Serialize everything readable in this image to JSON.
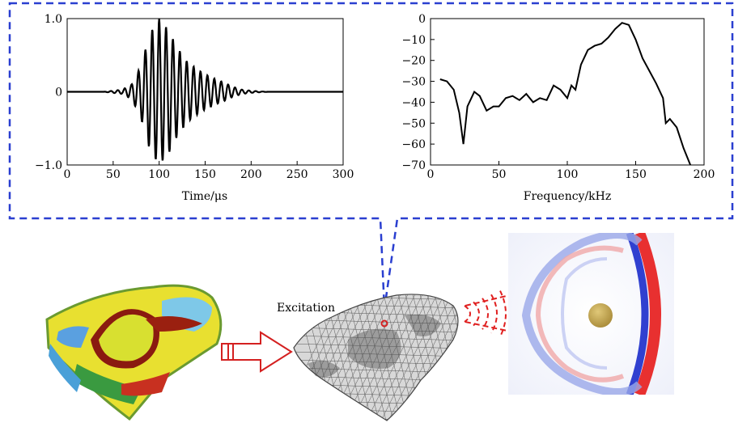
{
  "chart_data": [
    {
      "type": "line",
      "title": "",
      "xlabel": "Time/μs",
      "ylabel": "",
      "xlim": [
        0,
        300
      ],
      "ylim": [
        -1.0,
        1.0
      ],
      "x_ticks": [
        "0",
        "50",
        "100",
        "150",
        "200",
        "250",
        "300"
      ],
      "y_ticks": [
        "1.0",
        "0",
        "−1.0"
      ],
      "series": [
        {
          "x": [
            0,
            40,
            60,
            70,
            80,
            90,
            100,
            110,
            120,
            130,
            140,
            150,
            160,
            170,
            180,
            190,
            200,
            210,
            220,
            300
          ],
          "y_envelope": [
            0,
            0,
            0.03,
            0.1,
            0.35,
            0.8,
            1.0,
            0.85,
            0.6,
            0.42,
            0.32,
            0.24,
            0.18,
            0.13,
            0.07,
            0.03,
            0.015,
            0.005,
            0,
            0
          ]
        }
      ]
    },
    {
      "type": "line",
      "title": "",
      "xlabel": "Frequency/kHz",
      "ylabel": "",
      "xlim": [
        0,
        200
      ],
      "ylim": [
        -70,
        0
      ],
      "x_ticks": [
        "0",
        "50",
        "100",
        "150",
        "200"
      ],
      "y_ticks": [
        "0",
        "−10",
        "−20",
        "−30",
        "−40",
        "−50",
        "−60",
        "−70"
      ],
      "series": [
        {
          "x": [
            7,
            12,
            17,
            21,
            24,
            27,
            32,
            36,
            41,
            46,
            50,
            55,
            60,
            65,
            70,
            75,
            80,
            85,
            90,
            95,
            100,
            103,
            106,
            110,
            115,
            120,
            125,
            130,
            135,
            140,
            145,
            150,
            155,
            160,
            165,
            170,
            172,
            175,
            180,
            185,
            190
          ],
          "y": [
            -29,
            -30,
            -34,
            -45,
            -60,
            -42,
            -35,
            -37,
            -44,
            -42,
            -42,
            -38,
            -37,
            -39,
            -36,
            -40,
            -38,
            -39,
            -32,
            -34,
            -38,
            -32,
            -34,
            -22,
            -15,
            -13,
            -12,
            -9,
            -5,
            -2,
            -3,
            -10,
            -19,
            -25,
            -31,
            -38,
            -50,
            -48,
            -52,
            -62,
            -72
          ]
        }
      ]
    }
  ],
  "labels": {
    "excitation": "Excitation"
  },
  "colors": {
    "callout_border": "#2a3fd0",
    "arrow": "#d42020",
    "curve": "#000000"
  }
}
